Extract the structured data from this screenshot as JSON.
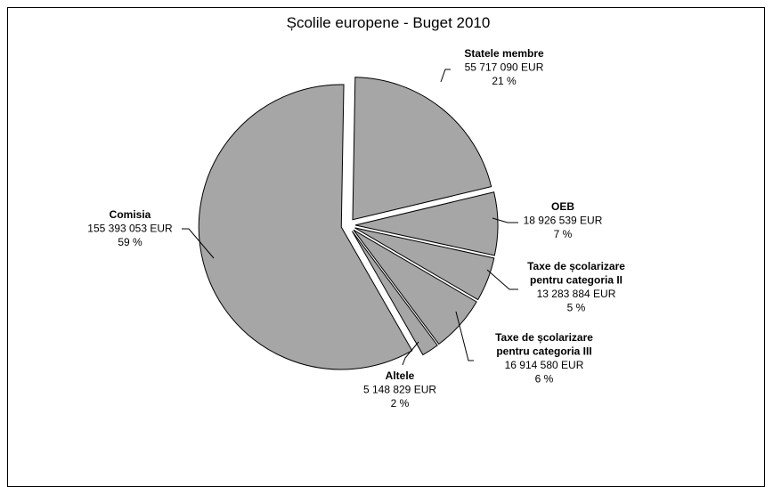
{
  "chart_data": {
    "type": "pie",
    "title": "Școlile europene - Buget 2010",
    "colors": {
      "slice_fill": "#a6a6a6",
      "slice_stroke": "#000000",
      "frame": "#000000"
    },
    "slices": [
      {
        "name": "Statele membre",
        "amount": "55 717 090 EUR",
        "percent_label": "21 %",
        "value": 55717090,
        "percent": 21,
        "exploded": true,
        "name_lines": [
          "Statele membre"
        ]
      },
      {
        "name": "OEB",
        "amount": "18 926 539 EUR",
        "percent_label": "7 %",
        "value": 18926539,
        "percent": 7,
        "exploded": true,
        "name_lines": [
          "OEB"
        ]
      },
      {
        "name": "Taxe de școlarizare pentru categoria II",
        "amount": "13 283 884 EUR",
        "percent_label": "5 %",
        "value": 13283884,
        "percent": 5,
        "exploded": true,
        "name_lines": [
          "Taxe de școlarizare",
          "pentru categoria II"
        ]
      },
      {
        "name": "Taxe de școlarizare pentru categoria III",
        "amount": "16 914 580 EUR",
        "percent_label": "6 %",
        "value": 16914580,
        "percent": 6,
        "exploded": true,
        "name_lines": [
          "Taxe de școlarizare",
          "pentru categoria III"
        ]
      },
      {
        "name": "Altele",
        "amount": "5 148 829 EUR",
        "percent_label": "2 %",
        "value": 5148829,
        "percent": 2,
        "exploded": true,
        "name_lines": [
          "Altele"
        ]
      },
      {
        "name": "Comisia",
        "amount": "155 393 053 EUR",
        "percent_label": "59 %",
        "value": 155393053,
        "percent": 59,
        "exploded": true,
        "name_lines": [
          "Comisia"
        ]
      }
    ]
  }
}
